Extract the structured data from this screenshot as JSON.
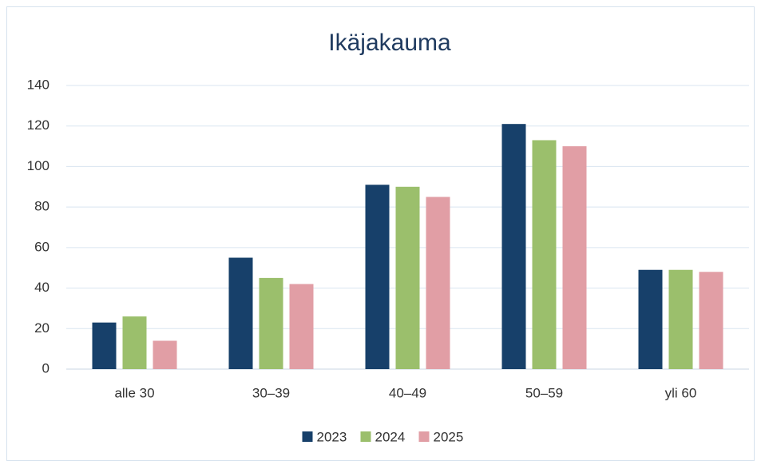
{
  "chart_data": {
    "type": "bar",
    "title": "Ikäjakauma",
    "categories": [
      "alle 30",
      "30–39",
      "40–49",
      "50–59",
      "yli 60"
    ],
    "series": [
      {
        "name": "2023",
        "color": "#17406a",
        "values": [
          23,
          55,
          91,
          121,
          49
        ]
      },
      {
        "name": "2024",
        "color": "#9bbf6c",
        "values": [
          26,
          45,
          90,
          113,
          49
        ]
      },
      {
        "name": "2025",
        "color": "#e19ea5",
        "values": [
          14,
          42,
          85,
          110,
          48
        ]
      }
    ],
    "ylim": [
      0,
      140
    ],
    "yticks": [
      0,
      20,
      40,
      60,
      80,
      100,
      120,
      140
    ],
    "grid": true,
    "legend": "bottom"
  }
}
